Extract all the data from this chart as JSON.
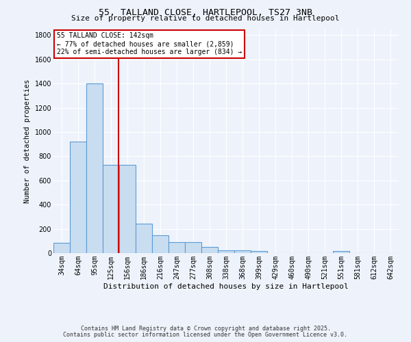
{
  "title1": "55, TALLAND CLOSE, HARTLEPOOL, TS27 3NB",
  "title2": "Size of property relative to detached houses in Hartlepool",
  "xlabel": "Distribution of detached houses by size in Hartlepool",
  "ylabel": "Number of detached properties",
  "categories": [
    "34sqm",
    "64sqm",
    "95sqm",
    "125sqm",
    "156sqm",
    "186sqm",
    "216sqm",
    "247sqm",
    "277sqm",
    "308sqm",
    "338sqm",
    "368sqm",
    "399sqm",
    "429sqm",
    "460sqm",
    "490sqm",
    "521sqm",
    "551sqm",
    "581sqm",
    "612sqm",
    "642sqm"
  ],
  "values": [
    85,
    920,
    1400,
    730,
    730,
    245,
    145,
    90,
    90,
    50,
    25,
    25,
    15,
    0,
    0,
    0,
    0,
    15,
    0,
    0,
    0
  ],
  "bar_color": "#c9ddf0",
  "bar_edge_color": "#5b9bd5",
  "background_color": "#eef3fb",
  "grid_color": "#ffffff",
  "red_line_x": 3.47,
  "red_line_color": "#cc0000",
  "annotation_text": "55 TALLAND CLOSE: 142sqm\n← 77% of detached houses are smaller (2,859)\n22% of semi-detached houses are larger (834) →",
  "annotation_box_color": "#ffffff",
  "annotation_box_edge": "#cc0000",
  "ylim": [
    0,
    1850
  ],
  "yticks": [
    0,
    200,
    400,
    600,
    800,
    1000,
    1200,
    1400,
    1600,
    1800
  ],
  "footnote1": "Contains HM Land Registry data © Crown copyright and database right 2025.",
  "footnote2": "Contains public sector information licensed under the Open Government Licence v3.0."
}
